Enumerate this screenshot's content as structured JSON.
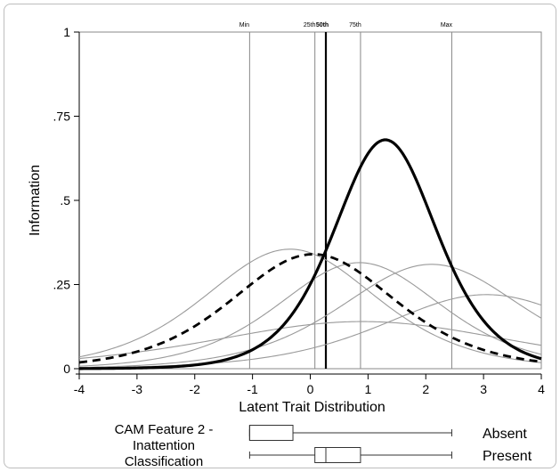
{
  "chart_data": {
    "type": "line",
    "xlabel": "Latent Trait Distribution",
    "ylabel": "Information",
    "xlim": [
      -4,
      4
    ],
    "ylim": [
      0,
      1
    ],
    "x_ticks": [
      -4,
      -3,
      -2,
      -1,
      0,
      1,
      2,
      3,
      4
    ],
    "y_ticks": [
      {
        "value": 0,
        "label": "0"
      },
      {
        "value": 0.25,
        "label": ".25"
      },
      {
        "value": 0.5,
        "label": ".5"
      },
      {
        "value": 0.75,
        "label": ".75"
      },
      {
        "value": 1,
        "label": "1"
      }
    ],
    "grid": false,
    "reference_lines": [
      {
        "label": "Min",
        "x": -1.05,
        "emphasis": false
      },
      {
        "label": "25th",
        "x": 0.08,
        "emphasis": false
      },
      {
        "label": "50th",
        "x": 0.27,
        "emphasis": true
      },
      {
        "label": "75th",
        "x": 0.87,
        "emphasis": false
      },
      {
        "label": "Max",
        "x": 2.45,
        "emphasis": false
      }
    ],
    "curves": [
      {
        "style": "bold-solid",
        "peak_x": 1.3,
        "peak_info": 0.68,
        "spread": 0.6
      },
      {
        "style": "bold-dashed",
        "peak_x": 0.05,
        "peak_info": 0.34,
        "spread": 0.95
      },
      {
        "style": "thin-gray",
        "peak_x": -0.35,
        "peak_info": 0.355,
        "spread": 1.0
      },
      {
        "style": "thin-gray",
        "peak_x": 0.85,
        "peak_info": 0.315,
        "spread": 0.95
      },
      {
        "style": "thin-gray",
        "peak_x": 2.1,
        "peak_info": 0.31,
        "spread": 1.05
      },
      {
        "style": "thin-gray",
        "peak_x": 3.05,
        "peak_info": 0.22,
        "spread": 1.2
      },
      {
        "style": "thin-gray",
        "peak_x": 0.9,
        "peak_info": 0.14,
        "spread": 1.75
      }
    ],
    "boxplot": {
      "title": "CAM Feature 2 -\nInattention\nClassification",
      "rows": [
        {
          "label": "Absent",
          "whisker_low": -1.05,
          "q1": -1.05,
          "median": -1.05,
          "q3": -0.3,
          "whisker_high": 2.45
        },
        {
          "label": "Present",
          "whisker_low": -1.05,
          "q1": 0.08,
          "median": 0.27,
          "q3": 0.87,
          "whisker_high": 2.45
        }
      ]
    }
  }
}
